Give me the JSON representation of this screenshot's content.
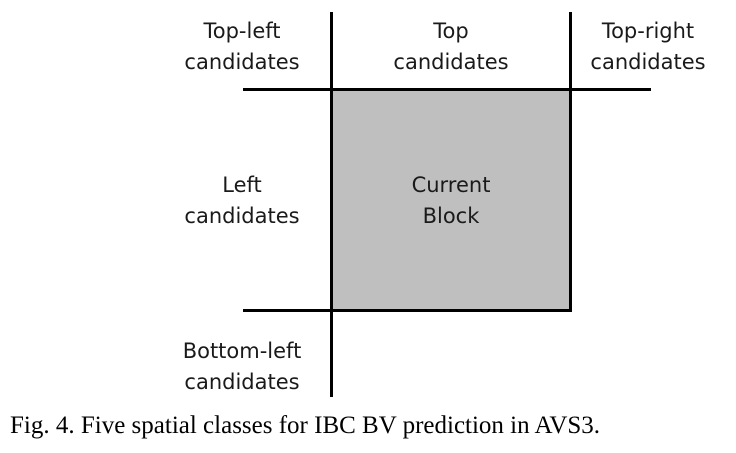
{
  "labels": {
    "top_left": [
      "Top-left",
      "candidates"
    ],
    "top": [
      "Top",
      "candidates"
    ],
    "top_right": [
      "Top-right",
      "candidates"
    ],
    "left": [
      "Left",
      "candidates"
    ],
    "current_block": [
      "Current",
      "Block"
    ],
    "bottom_left": [
      "Bottom-left",
      "candidates"
    ]
  },
  "caption": "Fig. 4.  Five spatial classes for IBC BV prediction in AVS3.",
  "colors": {
    "current_block_fill": "#bfbfbf",
    "lines": "#000000",
    "text": "#1a1a1a"
  }
}
